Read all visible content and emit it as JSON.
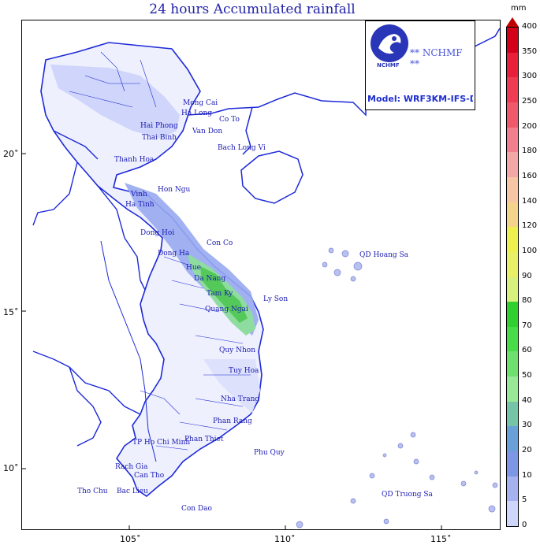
{
  "title": "24 hours Accumulated rainfall",
  "logo": {
    "org": "** NCHMF **",
    "emblem_text": "NCHMF",
    "model": "Model: WRF3KM-IFS-DA"
  },
  "colorbar": {
    "unit": "mm",
    "levels": [
      "400",
      "350",
      "300",
      "250",
      "200",
      "180",
      "160",
      "140",
      "120",
      "100",
      "90",
      "80",
      "70",
      "60",
      "50",
      "40",
      "30",
      "20",
      "10",
      "5",
      "0"
    ],
    "colors": [
      "#d4001a",
      "#e8203a",
      "#f03c52",
      "#f0586c",
      "#f27f8e",
      "#f3a7a7",
      "#f7c7a5",
      "#f4d38a",
      "#eef050",
      "#e8f068",
      "#d8f07c",
      "#30d030",
      "#48dc48",
      "#6ee06e",
      "#98e898",
      "#76c4a8",
      "#6aa0d8",
      "#7e96e6",
      "#a6b2f0",
      "#cfd6fb"
    ]
  },
  "axes": {
    "lat_labels": [
      "20˚",
      "15˚",
      "10˚"
    ],
    "lon_labels": [
      "105˚",
      "110˚",
      "115˚"
    ]
  },
  "places": [
    "Mong Cai",
    "Ha Long",
    "Co To",
    "Hai Phong",
    "Van Don",
    "Thai Binh",
    "Bach Long Vi",
    "Thanh Hoa",
    "Vinh",
    "Hon Ngu",
    "Ha Tinh",
    "Dong Hoi",
    "Con Co",
    "Dong Ha",
    "Hue",
    "QD Hoang Sa",
    "Da Nang",
    "Tam Ky",
    "Ly Son",
    "Quang Ngai",
    "Quy Nhon",
    "Tuy Hoa",
    "Nha Trang",
    "Phan Rang",
    "Phan Thiet",
    "TP Ho Chi Minh",
    "Phu Quy",
    "Rach Gia",
    "Can Tho",
    "Tho Chu",
    "Bac Lieu",
    "Con Dao",
    "QD Truong Sa"
  ]
}
